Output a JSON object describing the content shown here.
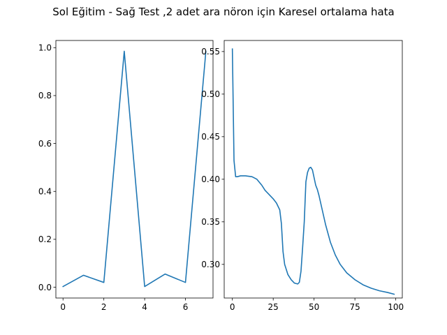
{
  "figure": {
    "suptitle": "Sol Eğitim - Sağ Test ,2 adet ara nöron için Karesel ortalama hata",
    "line_color": "#1f77b4"
  },
  "chart_data": [
    {
      "type": "line",
      "title": "",
      "xlabel": "",
      "ylabel": "",
      "grid": false,
      "xlim": [
        -0.35,
        7.35
      ],
      "ylim": [
        -0.045,
        1.03
      ],
      "xticks": [
        0,
        2,
        4,
        6
      ],
      "xtick_labels": [
        "0",
        "2",
        "4",
        "6"
      ],
      "yticks": [
        0.0,
        0.2,
        0.4,
        0.6,
        0.8,
        1.0
      ],
      "ytick_labels": [
        "0.0",
        "0.2",
        "0.4",
        "0.6",
        "0.8",
        "1.0"
      ],
      "series": [
        {
          "x": [
            0,
            1,
            2,
            3,
            4,
            5,
            6,
            7
          ],
          "y": [
            0.003,
            0.05,
            0.02,
            0.985,
            0.003,
            0.055,
            0.02,
            0.985
          ]
        }
      ]
    },
    {
      "type": "line",
      "title": "",
      "xlabel": "",
      "ylabel": "",
      "grid": false,
      "xlim": [
        -5,
        104
      ],
      "ylim": [
        0.2605,
        0.563
      ],
      "xticks": [
        0,
        25,
        50,
        75,
        100
      ],
      "xtick_labels": [
        "0",
        "25",
        "50",
        "75",
        "100"
      ],
      "yticks": [
        0.3,
        0.35,
        0.4,
        0.45,
        0.5,
        0.55
      ],
      "ytick_labels": [
        "0.30",
        "0.35",
        "0.40",
        "0.45",
        "0.50",
        "0.55"
      ],
      "series": [
        {
          "x": [
            0,
            1,
            2,
            3,
            5,
            8,
            12,
            15,
            18,
            20,
            22,
            25,
            27,
            29,
            30,
            31,
            32,
            34,
            36,
            38,
            40,
            41,
            42,
            43,
            44,
            45,
            46,
            47,
            48,
            49,
            50,
            51,
            52,
            53,
            55,
            57,
            60,
            63,
            66,
            70,
            75,
            80,
            85,
            90,
            95,
            99
          ],
          "y": [
            0.553,
            0.422,
            0.403,
            0.403,
            0.404,
            0.404,
            0.403,
            0.4,
            0.393,
            0.387,
            0.383,
            0.377,
            0.372,
            0.364,
            0.348,
            0.315,
            0.3,
            0.288,
            0.282,
            0.278,
            0.277,
            0.279,
            0.292,
            0.32,
            0.35,
            0.397,
            0.408,
            0.413,
            0.414,
            0.411,
            0.402,
            0.393,
            0.388,
            0.381,
            0.364,
            0.347,
            0.326,
            0.311,
            0.3,
            0.29,
            0.282,
            0.276,
            0.272,
            0.269,
            0.267,
            0.265
          ]
        }
      ]
    }
  ]
}
